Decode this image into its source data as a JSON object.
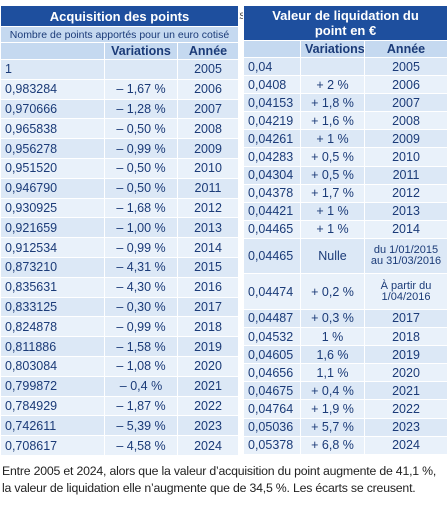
{
  "stray_text": "ts",
  "left_table": {
    "title": "Acquisition des points",
    "subtitle": "Nombre de points apportés pour un euro cotisé",
    "columns": [
      "Variations",
      "Année"
    ],
    "rows": [
      {
        "value": "1",
        "year": "2005"
      },
      {
        "value": "0,983284",
        "variation": "– 1,67 %",
        "year": "2006"
      },
      {
        "value": "0,970666",
        "variation": "– 1,28 %",
        "year": "2007"
      },
      {
        "value": "0,965838",
        "variation": "– 0,50 %",
        "year": "2008"
      },
      {
        "value": "0,956278",
        "variation": "– 0,99 %",
        "year": "2009"
      },
      {
        "value": "0,951520",
        "variation": "– 0,50 %",
        "year": "2010"
      },
      {
        "value": "0,946790",
        "variation": "– 0,50 %",
        "year": "2011"
      },
      {
        "value": "0,930925",
        "variation": "– 1,68 %",
        "year": "2012"
      },
      {
        "value": "0,921659",
        "variation": "– 1,00 %",
        "year": "2013"
      },
      {
        "value": "0,912534",
        "variation": "– 0,99 %",
        "year": "2014"
      },
      {
        "value": "0,873210",
        "variation": "– 4,31 %",
        "year": "2015"
      },
      {
        "value": "0,835631",
        "variation": "– 4,30 %",
        "year": "2016"
      },
      {
        "value": "0,833125",
        "variation": "– 0,30 %",
        "year": "2017"
      },
      {
        "value": "0,824878",
        "variation": "– 0,99 %",
        "year": "2018"
      },
      {
        "value": "0,811886",
        "variation": "– 1,58 %",
        "year": "2019"
      },
      {
        "value": "0,803084",
        "variation": "– 1,08 %",
        "year": "2020"
      },
      {
        "value": "0,799872",
        "variation": "– 0,4 %",
        "year": "2021"
      },
      {
        "value": "0,784929",
        "variation": "– 1,87 %",
        "year": "2022"
      },
      {
        "value": "0,742611",
        "variation": "– 5,39 %",
        "year": "2023"
      },
      {
        "value": "0,708617",
        "variation": "– 4,58 %",
        "year": "2024"
      }
    ]
  },
  "right_table": {
    "title": "Valeur de liquidation du point en €",
    "columns": [
      "Variations",
      "Année"
    ],
    "rows": [
      {
        "value": "0,04",
        "year": "2005"
      },
      {
        "value": "0,0408",
        "variation": "+ 2 %",
        "year": "2006"
      },
      {
        "value": "0,04153",
        "variation": "+ 1,8 %",
        "year": "2007"
      },
      {
        "value": "0,04219",
        "variation": "+ 1,6 %",
        "year": "2008"
      },
      {
        "value": "0,04261",
        "variation": "+ 1 %",
        "year": "2009"
      },
      {
        "value": "0,04283",
        "variation": "+ 0,5 %",
        "year": "2010"
      },
      {
        "value": "0,04304",
        "variation": "+ 0,5 %",
        "year": "2011"
      },
      {
        "value": "0,04378",
        "variation": "+ 1,7 %",
        "year": "2012"
      },
      {
        "value": "0,04421",
        "variation": "+ 1 %",
        "year": "2013"
      },
      {
        "value": "0,04465",
        "variation": "+ 1 %",
        "year": "2014"
      },
      {
        "value": "0,04465",
        "variation": "Nulle",
        "year": "du 1/01/2015 au 31/03/2016"
      },
      {
        "value": "0,04474",
        "variation": "+ 0,2 %",
        "year": "À partir du 1/04/2016"
      },
      {
        "value": "0,04487",
        "variation": "+ 0,3 %",
        "year": "2017"
      },
      {
        "value": "0,04532",
        "variation": "1 %",
        "year": "2018"
      },
      {
        "value": "0,04605",
        "variation": "1,6 %",
        "year": "2019"
      },
      {
        "value": "0,04656",
        "variation": "1,1 %",
        "year": "2020"
      },
      {
        "value": "0,04675",
        "variation": "+ 0,4 %",
        "year": "2021"
      },
      {
        "value": "0,04764",
        "variation": "+ 1,9 %",
        "year": "2022"
      },
      {
        "value": "0,05036",
        "variation": "+ 5,7 %",
        "year": "2023"
      },
      {
        "value": "0,05378",
        "variation": "+ 6,8 %",
        "year": "2024"
      }
    ]
  },
  "footnote": "Entre 2005 et 2024, alors que la valeur d’acquisition du point augmente de 41,1 %, la valeur de liquidation elle n’augmente que de 34,5 %. Les écarts se creusent."
}
